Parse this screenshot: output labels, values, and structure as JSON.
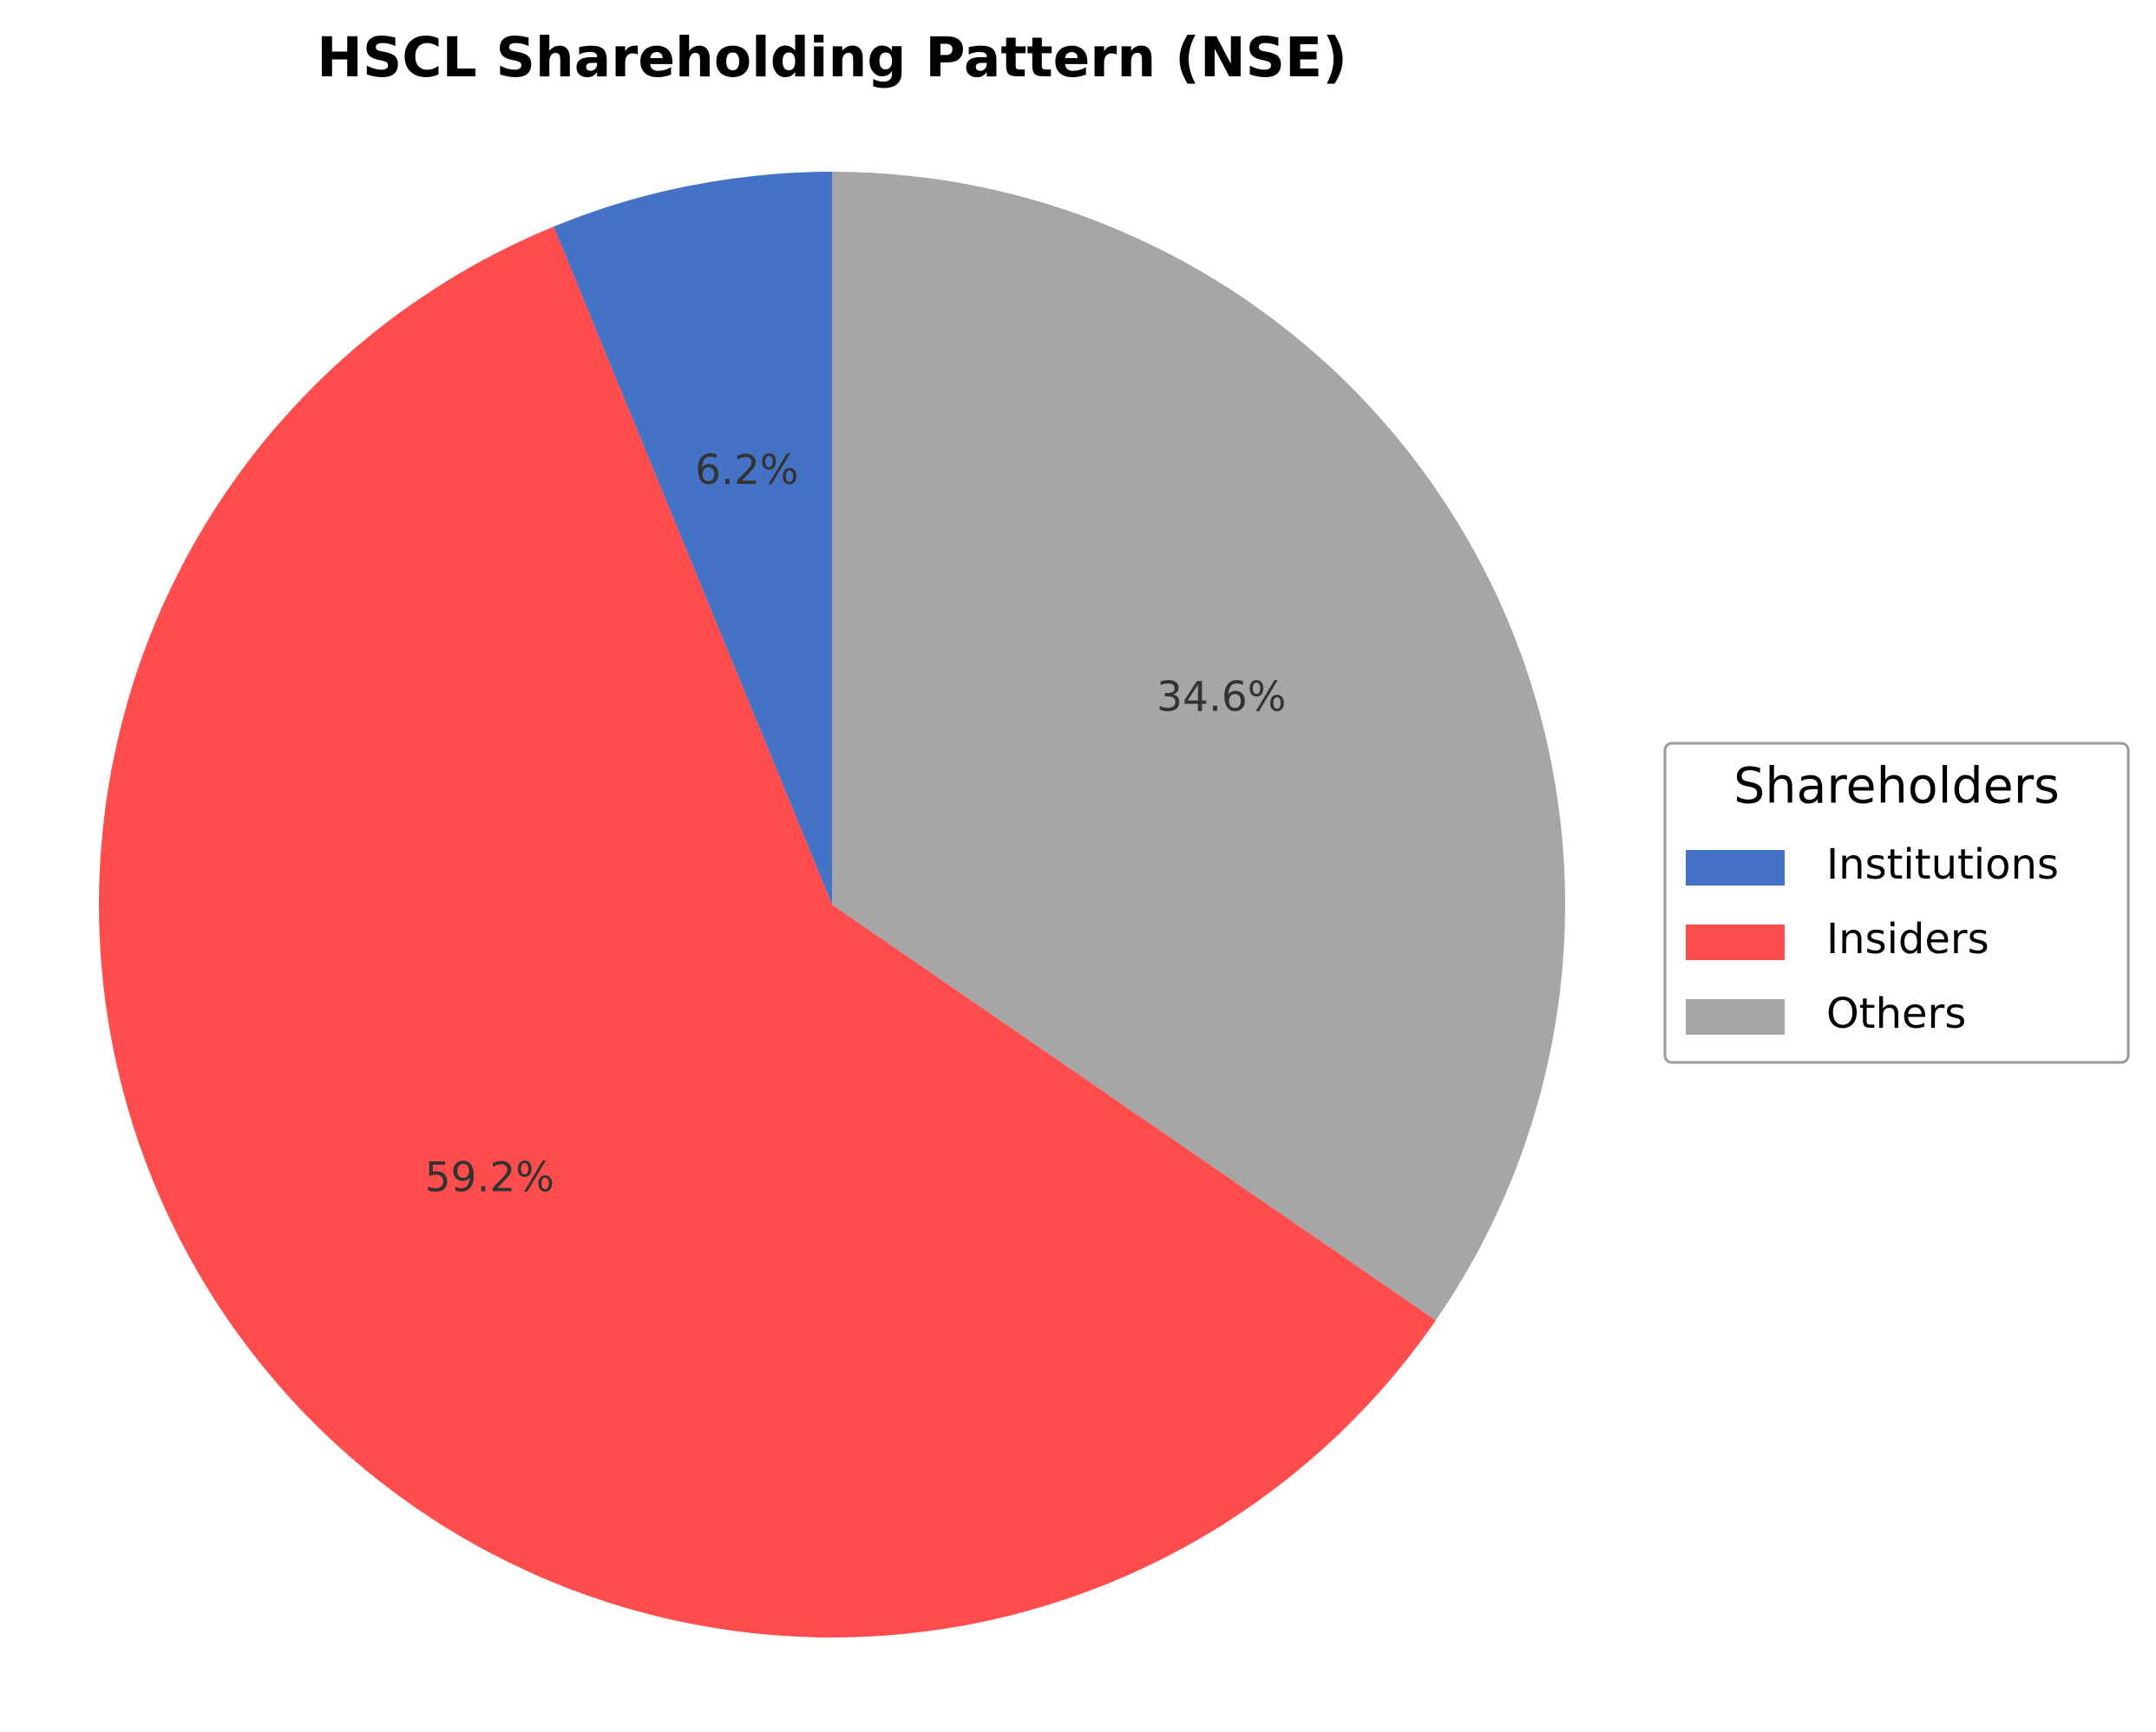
{
  "chart_data": {
    "type": "pie",
    "title": "HSCL Shareholding Pattern (NSE)",
    "categories": [
      "Institutions",
      "Insiders",
      "Others"
    ],
    "values": [
      6.2,
      59.2,
      34.6
    ],
    "value_labels": [
      "6.2%",
      "59.2%",
      "34.6%"
    ],
    "colors": [
      "#4472c4",
      "#ff4d4d",
      "#a6a6a6"
    ],
    "legend_title": "Shareholders",
    "legend": "right"
  }
}
